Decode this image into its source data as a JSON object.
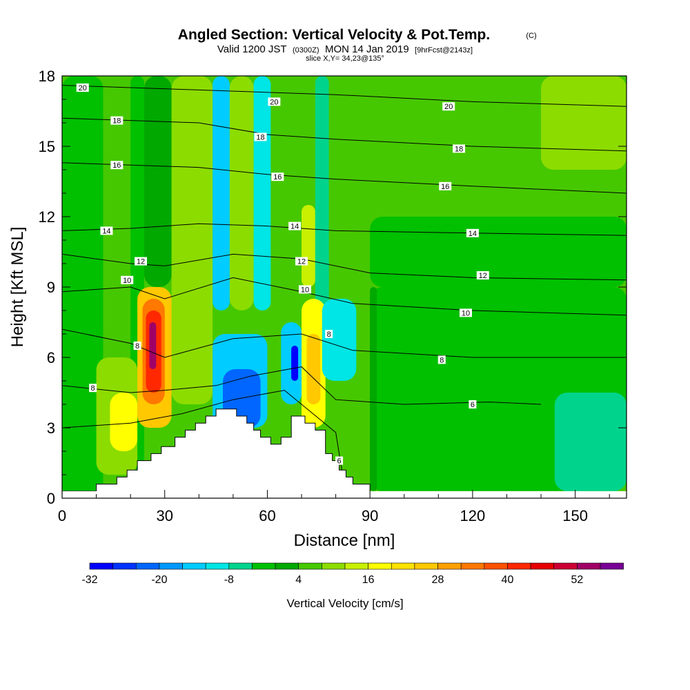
{
  "chart_data": {
    "type": "heatmap",
    "title": "Angled Section: Vertical Velocity & Pot.Temp.",
    "title_units": "(C)",
    "subtitle_valid": "Valid 1200 JST",
    "subtitle_utc": "(0300Z)",
    "subtitle_date": "MON 14 Jan 2019",
    "subtitle_fcst": "[9hrFcst@2143z]",
    "slice_text": "slice X,Y= 34,23@135°",
    "xlabel": "Distance [nm]",
    "ylabel": "Height [Kft MSL]",
    "xlim": [
      0,
      165
    ],
    "ylim": [
      0,
      18
    ],
    "x_ticks": [
      0,
      30,
      60,
      90,
      120,
      150
    ],
    "x_tick_labels": [
      "0",
      "30",
      "60",
      "90",
      "120",
      "150"
    ],
    "y_ticks": [
      0,
      3,
      6,
      9,
      12,
      15,
      18
    ],
    "y_tick_labels": [
      "0",
      "3",
      "6",
      "9",
      "12",
      "15",
      "18"
    ],
    "colorbar": {
      "title": "Vertical Velocity [cm/s]",
      "min": -32,
      "max": 56,
      "step": 4,
      "labels": [
        "-32",
        "-20",
        "-8",
        "4",
        "16",
        "28",
        "40",
        "52"
      ],
      "label_values": [
        -32,
        -20,
        -8,
        4,
        16,
        28,
        40,
        52
      ],
      "colors": [
        "#0000ff",
        "#0033ff",
        "#0066ff",
        "#0099ff",
        "#00ccff",
        "#00e5e5",
        "#00d48c",
        "#00c000",
        "#00a800",
        "#46c800",
        "#8cdc00",
        "#c8f000",
        "#ffff00",
        "#ffe100",
        "#ffc800",
        "#ffa000",
        "#ff7800",
        "#ff5000",
        "#ff2800",
        "#e60000",
        "#cc0033",
        "#a00066",
        "#780096"
      ]
    },
    "velocity_cells": [
      {
        "x": [
          0,
          12
        ],
        "z": [
          0,
          18
        ],
        "w": -2
      },
      {
        "x": [
          12,
          20
        ],
        "z": [
          0,
          18
        ],
        "w": 6
      },
      {
        "x": [
          20,
          24
        ],
        "z": [
          0,
          18
        ],
        "w": -4
      },
      {
        "x": [
          24,
          32
        ],
        "z": [
          9,
          18
        ],
        "w": 2
      },
      {
        "x": [
          32,
          44
        ],
        "z": [
          4,
          18
        ],
        "w": 8
      },
      {
        "x": [
          44,
          49
        ],
        "z": [
          8,
          18
        ],
        "w": -14
      },
      {
        "x": [
          49,
          56
        ],
        "z": [
          8,
          18
        ],
        "w": 8
      },
      {
        "x": [
          56,
          61
        ],
        "z": [
          8,
          18
        ],
        "w": -12
      },
      {
        "x": [
          61,
          70
        ],
        "z": [
          10,
          18
        ],
        "w": 4
      },
      {
        "x": [
          70,
          74
        ],
        "z": [
          9,
          12.5
        ],
        "w": 14
      },
      {
        "x": [
          74,
          78
        ],
        "z": [
          8,
          18
        ],
        "w": -8
      },
      {
        "x": [
          78,
          92
        ],
        "z": [
          10,
          18
        ],
        "w": 4
      },
      {
        "x": [
          92,
          140
        ],
        "z": [
          12,
          18
        ],
        "w": 4
      },
      {
        "x": [
          140,
          165
        ],
        "z": [
          14,
          18
        ],
        "w": 8
      },
      {
        "x": [
          90,
          165
        ],
        "z": [
          9,
          12
        ],
        "w": -2
      },
      {
        "x": [
          90,
          165
        ],
        "z": [
          0.3,
          9
        ],
        "w": -4
      },
      {
        "x": [
          144,
          165
        ],
        "z": [
          0.3,
          4.5
        ],
        "w": -8
      },
      {
        "x": [
          90,
          92
        ],
        "z": [
          0.3,
          9
        ],
        "w": 2
      },
      {
        "x": [
          10,
          22
        ],
        "z": [
          1,
          6
        ],
        "w": 10
      },
      {
        "x": [
          14,
          22
        ],
        "z": [
          2,
          4.5
        ],
        "w": 18
      },
      {
        "x": [
          22,
          32
        ],
        "z": [
          3,
          9
        ],
        "w": 24
      },
      {
        "x": [
          23.5,
          30
        ],
        "z": [
          4,
          8.5
        ],
        "w": 32
      },
      {
        "x": [
          24.5,
          29
        ],
        "z": [
          4.5,
          8
        ],
        "w": 40
      },
      {
        "x": [
          25.5,
          27.5
        ],
        "z": [
          5.5,
          7.5
        ],
        "w": 52
      },
      {
        "x": [
          44,
          60
        ],
        "z": [
          3,
          7
        ],
        "w": -16
      },
      {
        "x": [
          47,
          58
        ],
        "z": [
          3,
          5.5
        ],
        "w": -24
      },
      {
        "x": [
          64,
          70
        ],
        "z": [
          4,
          7.5
        ],
        "w": -16
      },
      {
        "x": [
          67,
          69
        ],
        "z": [
          5,
          6.5
        ],
        "w": -30
      },
      {
        "x": [
          70,
          77
        ],
        "z": [
          3,
          8.5
        ],
        "w": 18
      },
      {
        "x": [
          71.5,
          75.5
        ],
        "z": [
          4,
          7
        ],
        "w": 24
      },
      {
        "x": [
          76,
          86
        ],
        "z": [
          5,
          8.5
        ],
        "w": -12
      }
    ],
    "terrain_profile": [
      {
        "x": 0,
        "z": 0.3
      },
      {
        "x": 10,
        "z": 0.6
      },
      {
        "x": 16,
        "z": 0.9
      },
      {
        "x": 19,
        "z": 1.2
      },
      {
        "x": 22,
        "z": 1.6
      },
      {
        "x": 26,
        "z": 1.9
      },
      {
        "x": 29,
        "z": 2.2
      },
      {
        "x": 33,
        "z": 2.6
      },
      {
        "x": 36,
        "z": 2.9
      },
      {
        "x": 39,
        "z": 3.2
      },
      {
        "x": 42,
        "z": 3.5
      },
      {
        "x": 45,
        "z": 3.8
      },
      {
        "x": 51,
        "z": 3.5
      },
      {
        "x": 54,
        "z": 3.2
      },
      {
        "x": 56,
        "z": 2.9
      },
      {
        "x": 58,
        "z": 2.6
      },
      {
        "x": 61,
        "z": 2.3
      },
      {
        "x": 64,
        "z": 2.6
      },
      {
        "x": 67,
        "z": 3.5
      },
      {
        "x": 71,
        "z": 3.2
      },
      {
        "x": 74,
        "z": 2.9
      },
      {
        "x": 77,
        "z": 1.9
      },
      {
        "x": 79,
        "z": 1.6
      },
      {
        "x": 81,
        "z": 1.2
      },
      {
        "x": 83,
        "z": 0.9
      },
      {
        "x": 85,
        "z": 0.6
      },
      {
        "x": 90,
        "z": 0.3
      }
    ],
    "isentropes": [
      {
        "label": "20",
        "points": [
          [
            0,
            17.6
          ],
          [
            40,
            17.4
          ],
          [
            80,
            17.2
          ],
          [
            120,
            16.9
          ],
          [
            165,
            16.7
          ]
        ]
      },
      {
        "label": "18",
        "points": [
          [
            0,
            16.2
          ],
          [
            40,
            16.0
          ],
          [
            60,
            15.5
          ],
          [
            80,
            15.3
          ],
          [
            120,
            15.0
          ],
          [
            165,
            14.8
          ]
        ]
      },
      {
        "label": "16",
        "points": [
          [
            0,
            14.3
          ],
          [
            40,
            14.1
          ],
          [
            60,
            13.8
          ],
          [
            80,
            13.6
          ],
          [
            120,
            13.3
          ],
          [
            165,
            13.0
          ]
        ]
      },
      {
        "label": "14",
        "points": [
          [
            0,
            11.4
          ],
          [
            20,
            11.5
          ],
          [
            40,
            11.7
          ],
          [
            60,
            11.6
          ],
          [
            80,
            11.4
          ],
          [
            120,
            11.3
          ],
          [
            165,
            11.2
          ]
        ]
      },
      {
        "label": "12",
        "points": [
          [
            0,
            10.4
          ],
          [
            20,
            10.0
          ],
          [
            30,
            9.9
          ],
          [
            50,
            10.4
          ],
          [
            70,
            10.2
          ],
          [
            90,
            9.6
          ],
          [
            120,
            9.4
          ],
          [
            165,
            9.3
          ]
        ]
      },
      {
        "label": "10",
        "points": [
          [
            0,
            8.8
          ],
          [
            20,
            9.0
          ],
          [
            30,
            8.5
          ],
          [
            50,
            9.4
          ],
          [
            70,
            8.8
          ],
          [
            85,
            8.3
          ],
          [
            120,
            8.0
          ],
          [
            165,
            7.8
          ]
        ]
      },
      {
        "label": "8",
        "points": [
          [
            0,
            7.2
          ],
          [
            20,
            6.6
          ],
          [
            30,
            6.0
          ],
          [
            50,
            6.8
          ],
          [
            70,
            7.0
          ],
          [
            85,
            6.3
          ],
          [
            120,
            6.0
          ],
          [
            165,
            6.0
          ]
        ]
      },
      {
        "label": "6",
        "points": [
          [
            0,
            4.8
          ],
          [
            20,
            4.5
          ],
          [
            30,
            4.6
          ],
          [
            45,
            4.8
          ],
          [
            55,
            5.2
          ],
          [
            70,
            5.6
          ],
          [
            80,
            4.2
          ],
          [
            100,
            4.0
          ],
          [
            125,
            4.1
          ],
          [
            140,
            4.0
          ]
        ]
      },
      {
        "label": "6",
        "points": [
          [
            0,
            3.0
          ],
          [
            20,
            3.2
          ],
          [
            35,
            3.6
          ],
          [
            50,
            4.2
          ],
          [
            65,
            4.6
          ],
          [
            80,
            2.8
          ],
          [
            82,
            1.0
          ]
        ]
      }
    ],
    "contour_labels": [
      {
        "text": "20",
        "x": 6,
        "z": 17.5
      },
      {
        "text": "18",
        "x": 16,
        "z": 16.1
      },
      {
        "text": "16",
        "x": 16,
        "z": 14.2
      },
      {
        "text": "14",
        "x": 13,
        "z": 11.4
      },
      {
        "text": "12",
        "x": 23,
        "z": 10.1
      },
      {
        "text": "10",
        "x": 19,
        "z": 9.3
      },
      {
        "text": "8",
        "x": 22,
        "z": 6.5
      },
      {
        "text": "8",
        "x": 9,
        "z": 4.7
      },
      {
        "text": "20",
        "x": 62,
        "z": 16.9
      },
      {
        "text": "18",
        "x": 58,
        "z": 15.4
      },
      {
        "text": "16",
        "x": 63,
        "z": 13.7
      },
      {
        "text": "14",
        "x": 68,
        "z": 11.6
      },
      {
        "text": "12",
        "x": 70,
        "z": 10.1
      },
      {
        "text": "10",
        "x": 71,
        "z": 8.9
      },
      {
        "text": "8",
        "x": 78,
        "z": 7.0
      },
      {
        "text": "6",
        "x": 81,
        "z": 1.6
      },
      {
        "text": "20",
        "x": 113,
        "z": 16.7
      },
      {
        "text": "18",
        "x": 116,
        "z": 14.9
      },
      {
        "text": "16",
        "x": 112,
        "z": 13.3
      },
      {
        "text": "14",
        "x": 120,
        "z": 11.3
      },
      {
        "text": "12",
        "x": 123,
        "z": 9.5
      },
      {
        "text": "10",
        "x": 118,
        "z": 7.9
      },
      {
        "text": "8",
        "x": 111,
        "z": 5.9
      },
      {
        "text": "6",
        "x": 120,
        "z": 4.0
      }
    ]
  }
}
